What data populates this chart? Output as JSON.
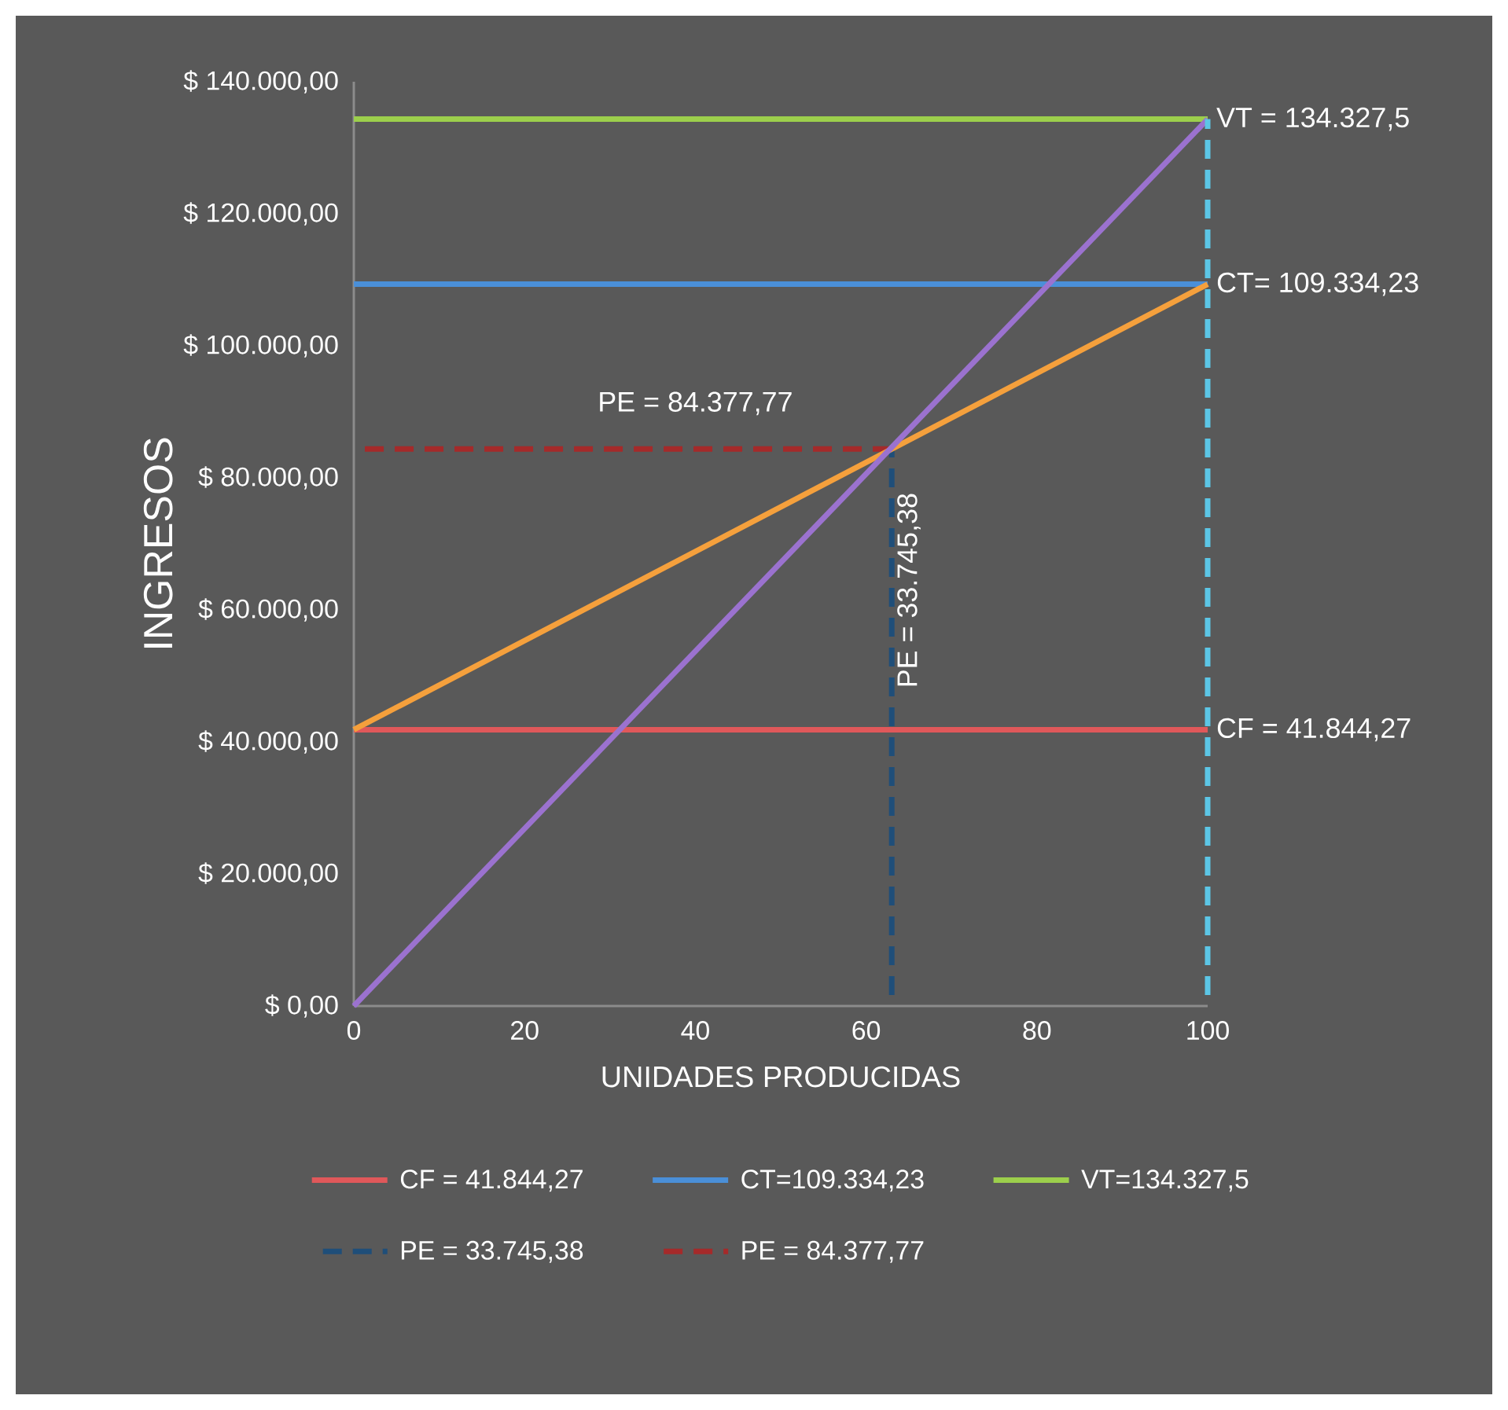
{
  "chart_data": {
    "type": "line",
    "xlabel": "UNIDADES PRODUCIDAS",
    "ylabel": "INGRESOS",
    "xlim": [
      0,
      100
    ],
    "ylim": [
      0,
      140000
    ],
    "xticks": [
      0,
      20,
      40,
      60,
      80,
      100
    ],
    "yticks": [
      {
        "value": 0,
        "label": "$ 0,00"
      },
      {
        "value": 20000,
        "label": "$ 20.000,00"
      },
      {
        "value": 40000,
        "label": "$ 40.000,00"
      },
      {
        "value": 60000,
        "label": "$ 60.000,00"
      },
      {
        "value": 80000,
        "label": "$ 80.000,00"
      },
      {
        "value": 100000,
        "label": "$ 100.000,00"
      },
      {
        "value": 120000,
        "label": "$ 120.000,00"
      },
      {
        "value": 140000,
        "label": "$ 140.000,00"
      }
    ],
    "series": [
      {
        "name": "CF = 41.844,27",
        "color": "#e0585a",
        "x": [
          0,
          100
        ],
        "values": [
          41844.27,
          41844.27
        ]
      },
      {
        "name": "CT=109.334,23",
        "color": "#4a8fd8",
        "x": [
          0,
          100
        ],
        "values": [
          109334.23,
          109334.23
        ]
      },
      {
        "name": "VT=134.327,5",
        "color": "#9ccf4c",
        "x": [
          0,
          100
        ],
        "values": [
          134327.5,
          134327.5
        ]
      },
      {
        "name": "PE = 33.745,38",
        "color": "#1f4e79",
        "line_style": "dashed",
        "x": [
          63,
          63
        ],
        "values": [
          0,
          84377.77
        ]
      },
      {
        "name": "PE = 84.377,77",
        "color": "#a52a2a",
        "line_style": "dashed",
        "x": [
          0,
          63
        ],
        "values": [
          84377.77,
          84377.77
        ]
      },
      {
        "color": "#f5a03c",
        "x": [
          0,
          100
        ],
        "values": [
          41844.27,
          109334.23
        ]
      },
      {
        "color": "#9b72cf",
        "x": [
          0,
          100
        ],
        "values": [
          0,
          134327.5
        ]
      },
      {
        "color": "#5cc6e6",
        "line_style": "dashed",
        "x": [
          100,
          100
        ],
        "values": [
          0,
          134327.5
        ]
      }
    ],
    "annotations": [
      {
        "text": "VT = 134.327,5",
        "x": 100,
        "y": 134327.5
      },
      {
        "text": "CT= 109.334,23",
        "x": 100,
        "y": 109334.23
      },
      {
        "text": "CF = 41.844,27",
        "x": 100,
        "y": 41844.27
      },
      {
        "text": "PE = 84.377,77",
        "x": 40,
        "y": 84377.77
      },
      {
        "text": "PE = 33.745,38",
        "x": 63,
        "y": 62000
      }
    ],
    "legend": "bottom"
  }
}
